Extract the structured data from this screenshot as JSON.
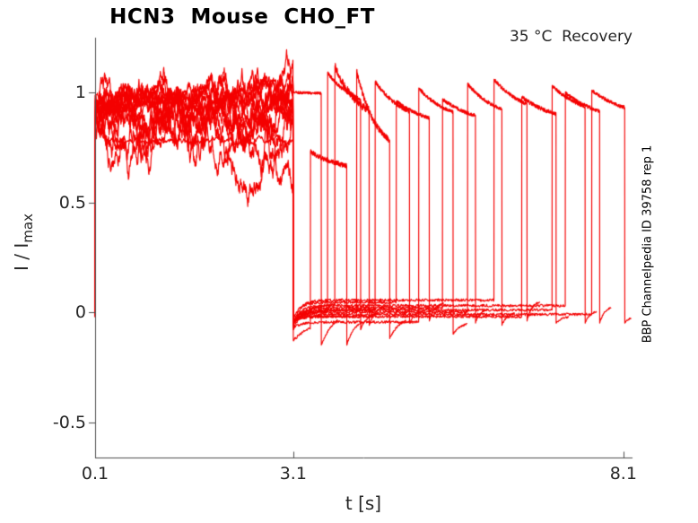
{
  "title": "HCN3  Mouse  CHO_FT",
  "annotation": "35 °C  Recovery",
  "xlabel": "t [s]",
  "ylabel": {
    "main": "I / I",
    "sub": "max"
  },
  "side_label": "BBP Channelpedia ID 39758 rep 1",
  "colors": {
    "trace": "#f40000",
    "axis": "#4d4d4d",
    "tick_text": "#262626",
    "title_text": "#000000",
    "background": "#ffffff"
  },
  "chart_data": {
    "type": "line",
    "title": "HCN3  Mouse  CHO_FT",
    "subtitle": "35 °C  Recovery",
    "xlabel": "t [s]",
    "ylabel": "I / I_max",
    "grid": false,
    "legend": null,
    "xlim": [
      0.1,
      8.24
    ],
    "ylim": [
      -0.66,
      1.25
    ],
    "xticks": [
      {
        "label": "0.1",
        "value": 0.1
      },
      {
        "label": "3.1",
        "value": 3.1
      },
      {
        "label": "8.1",
        "value": 8.1
      }
    ],
    "yticks": [
      {
        "label": "1",
        "value": 1
      },
      {
        "label": "0.5",
        "value": 0.5
      },
      {
        "label": "0",
        "value": 0
      },
      {
        "label": "-0.5",
        "value": -0.5
      }
    ],
    "conditioning": {
      "t_start": 0.1,
      "t_end": 3.1,
      "start_value": 0.0
    },
    "seed": 1337,
    "sweeps": [
      {
        "plateau": 0.99,
        "amp": 0.016,
        "pull": 0.05,
        "cont": true,
        "delay": 0.004,
        "dur": 0.42,
        "peak": 1.0,
        "asym": 0.985,
        "tau": 1.2,
        "pnoise": 0.006,
        "base": 0.02,
        "under": -0.12,
        "rec": 0.2,
        "under2": -0.15,
        "rec2": 0.22,
        "tail": 0.25
      },
      {
        "plateau": 0.88,
        "amp": 0.028,
        "pull": 0.02,
        "dips": [
          [
            2.2,
            2.5,
            0.67
          ],
          [
            2.75,
            3.1,
            0.53
          ]
        ],
        "delay": 0.26,
        "dur": 0.55,
        "peak": 0.73,
        "asym": 0.63,
        "tau": 0.55,
        "pnoise": 0.012,
        "base": -0.03,
        "under": -0.13,
        "rec": 0.3,
        "under2": -0.15,
        "rec2": 0.12,
        "tail": 0.25
      },
      {
        "plateau": 0.97,
        "amp": 0.022,
        "pull": 0.03,
        "delay": 0.52,
        "dur": 0.5,
        "peak": 1.09,
        "asym": 0.92,
        "tau": 0.4,
        "pnoise": 0.008,
        "base": 0.0,
        "under": -0.05,
        "rec": 0.12,
        "under2": -0.08,
        "rec2": 0.1,
        "tail": 0.25
      },
      {
        "plateau": 0.93,
        "amp": 0.03,
        "pull": 0.02,
        "delay": 0.63,
        "dur": 0.52,
        "peak": 1.12,
        "asym": 0.86,
        "tau": 0.35,
        "pnoise": 0.018,
        "base": 0.035,
        "under": -0.08,
        "rec": 0.15,
        "under2": -0.06,
        "rec2": 0.1,
        "tail": 0.25
      },
      {
        "plateau": 0.985,
        "amp": 0.02,
        "pull": 0.04,
        "delay": 0.96,
        "dur": 0.5,
        "peak": 1.1,
        "asym": 0.72,
        "tau": 0.28,
        "pnoise": 0.014,
        "base": -0.02,
        "under": -0.04,
        "rec": 0.1,
        "under2": -0.12,
        "rec2": 0.15,
        "tail": 0.25
      },
      {
        "plateau": 0.89,
        "amp": 0.032,
        "pull": 0.02,
        "dips": [
          [
            1.25,
            1.6,
            0.68
          ]
        ],
        "delay": 1.24,
        "dur": 0.52,
        "peak": 1.05,
        "asym": 0.85,
        "tau": 0.45,
        "pnoise": 0.009,
        "base": 0.01,
        "under": -0.06,
        "rec": 0.12,
        "under2": -0.05,
        "rec2": 0.08,
        "tail": 0.22
      },
      {
        "plateau": 0.78,
        "amp": 0.006,
        "pull": 0.08,
        "start_high": true,
        "delay": 1.56,
        "dur": 0.5,
        "peak": 0.96,
        "asym": 0.84,
        "tau": 0.5,
        "pnoise": 0.008,
        "base": 0.045,
        "under": -0.03,
        "rec": 0.1,
        "under2": -0.04,
        "rec2": 0.08,
        "tail": 0.22
      },
      {
        "plateau": 0.84,
        "amp": 0.03,
        "pull": 0.02,
        "delay": 1.9,
        "dur": 0.52,
        "peak": 1.02,
        "asym": 0.86,
        "tau": 0.45,
        "pnoise": 0.008,
        "base": -0.045,
        "under": -0.07,
        "rec": 0.12,
        "under2": -0.1,
        "rec2": 0.12,
        "tail": 0.22
      },
      {
        "plateau": 0.975,
        "amp": 0.02,
        "pull": 0.035,
        "delay": 2.26,
        "dur": 0.5,
        "peak": 0.97,
        "asym": 0.85,
        "tau": 0.5,
        "pnoise": 0.008,
        "base": 0.02,
        "under": -0.05,
        "rec": 0.1,
        "under2": -0.05,
        "rec2": 0.08,
        "tail": 0.2
      },
      {
        "plateau": 0.91,
        "amp": 0.028,
        "pull": 0.02,
        "delay": 2.64,
        "dur": 0.52,
        "peak": 1.04,
        "asym": 0.87,
        "tau": 0.45,
        "pnoise": 0.008,
        "base": 0.0,
        "under": -0.04,
        "rec": 0.1,
        "under2": -0.06,
        "rec2": 0.08,
        "tail": 0.2
      },
      {
        "plateau": 0.98,
        "amp": 0.02,
        "pull": 0.04,
        "delay": 3.04,
        "dur": 0.5,
        "peak": 1.06,
        "asym": 0.88,
        "tau": 0.5,
        "pnoise": 0.008,
        "base": 0.055,
        "under": -0.06,
        "rec": 0.1,
        "under2": -0.04,
        "rec2": 0.08,
        "tail": 0.2
      },
      {
        "plateau": 0.87,
        "amp": 0.03,
        "pull": 0.02,
        "delay": 3.46,
        "dur": 0.52,
        "peak": 0.98,
        "asym": 0.86,
        "tau": 0.5,
        "pnoise": 0.009,
        "base": -0.02,
        "under": -0.05,
        "rec": 0.1,
        "under2": -0.05,
        "rec2": 0.08,
        "tail": 0.2
      },
      {
        "plateau": 0.955,
        "amp": 0.022,
        "pull": 0.03,
        "delay": 3.92,
        "dur": 0.5,
        "peak": 1.03,
        "asym": 0.87,
        "tau": 0.55,
        "pnoise": 0.008,
        "base": 0.01,
        "under": -0.04,
        "rec": 0.1,
        "under2": -0.05,
        "rec2": 0.08,
        "tail": 0.18
      },
      {
        "plateau": 0.93,
        "amp": 0.025,
        "pull": 0.025,
        "delay": 4.12,
        "dur": 0.52,
        "peak": 1.0,
        "asym": 0.86,
        "tau": 0.55,
        "pnoise": 0.008,
        "base": 0.03,
        "under": -0.06,
        "rec": 0.1,
        "under2": -0.05,
        "rec2": 0.08,
        "tail": 0.18
      },
      {
        "plateau": 0.9,
        "amp": 0.028,
        "pull": 0.02,
        "delay": 4.52,
        "dur": 0.5,
        "peak": 1.01,
        "asym": 0.87,
        "tau": 0.6,
        "pnoise": 0.008,
        "base": -0.01,
        "under": -0.05,
        "rec": 0.1,
        "under2": -0.05,
        "rec2": 0.1,
        "tail": 0.12
      }
    ]
  }
}
